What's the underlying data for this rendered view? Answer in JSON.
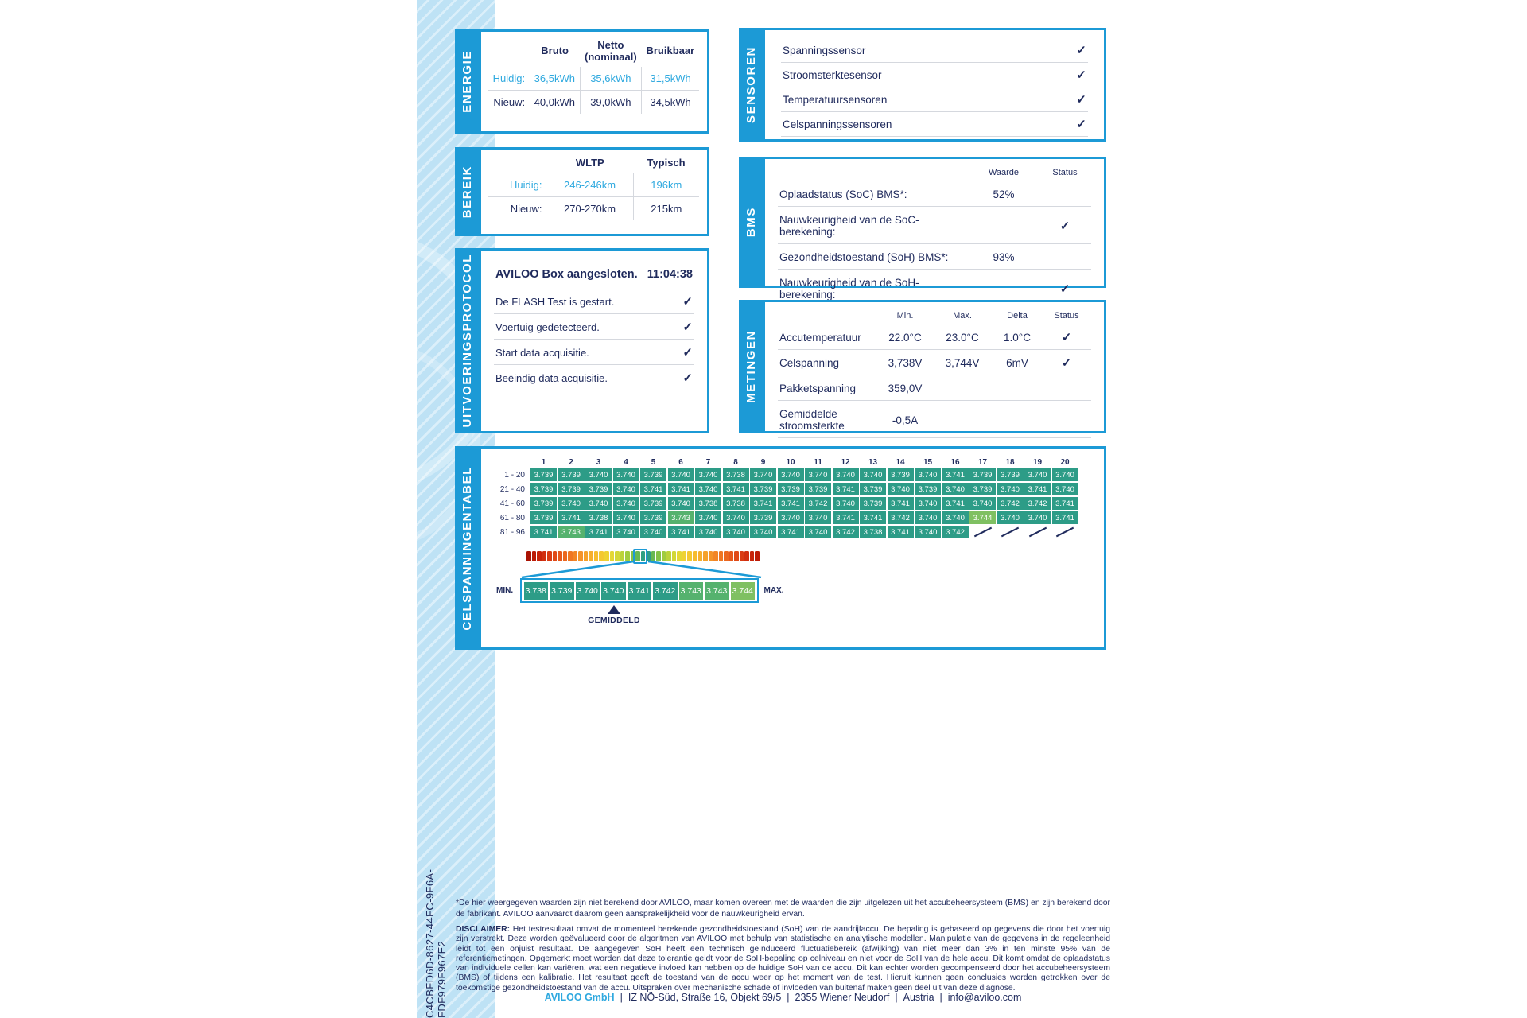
{
  "page": {
    "id_code": "C4CBFD6D-8627-44FC-9F6A-FDF979F967E2"
  },
  "colors": {
    "brand_blue": "#1C9AD6",
    "light_blue_text": "#2FA9DF",
    "navy": "#1F2A5C",
    "band": "#BEE2F5",
    "cell_default": "#2D9C87",
    "cell_3743": "#55B26E",
    "cell_3744": "#7FC062"
  },
  "energie": {
    "label": "ENERGIE",
    "headers": [
      "Bruto",
      "Netto\n(nominaal)",
      "Bruikbaar"
    ],
    "rows": [
      {
        "label": "Huidig:",
        "values": [
          "36,5kWh",
          "35,6kWh",
          "31,5kWh"
        ],
        "highlight": true
      },
      {
        "label": "Nieuw:",
        "values": [
          "40,0kWh",
          "39,0kWh",
          "34,5kWh"
        ],
        "highlight": false
      }
    ]
  },
  "bereik": {
    "label": "BEREIK",
    "headers": [
      "WLTP",
      "Typisch"
    ],
    "rows": [
      {
        "label": "Huidig:",
        "values": [
          "246-246km",
          "196km"
        ],
        "highlight": true
      },
      {
        "label": "Nieuw:",
        "values": [
          "270-270km",
          "215km"
        ],
        "highlight": false
      }
    ]
  },
  "protocol": {
    "label": "UITVOERINGSPROTOCOL",
    "header_text": "AVILOO Box aangesloten.",
    "header_time": "11:04:38",
    "items": [
      {
        "text": "De FLASH Test is gestart.",
        "check": true
      },
      {
        "text": "Voertuig gedetecteerd.",
        "check": true
      },
      {
        "text": "Start data acquisitie.",
        "check": true
      },
      {
        "text": "Beëindig data acquisitie.",
        "check": true
      }
    ]
  },
  "sensoren": {
    "label": "SENSOREN",
    "items": [
      {
        "text": "Spanningssensor",
        "check": true
      },
      {
        "text": "Stroomsterktesensor",
        "check": true
      },
      {
        "text": "Temperatuursensoren",
        "check": true
      },
      {
        "text": "Celspanningssensoren",
        "check": true
      }
    ]
  },
  "bms": {
    "label": "BMS",
    "headers": {
      "waarde": "Waarde",
      "status": "Status"
    },
    "rows": [
      {
        "text": "Oplaadstatus (SoC) BMS*:",
        "waarde": "52%",
        "check": false
      },
      {
        "text": "Nauwkeurigheid van de SoC-berekening:",
        "waarde": "",
        "check": true
      },
      {
        "text": "Gezondheidstoestand (SoH) BMS*:",
        "waarde": "93%",
        "check": false
      },
      {
        "text": "Nauwkeurigheid van de SoH-berekening:",
        "waarde": "",
        "check": true
      }
    ]
  },
  "metingen": {
    "label": "METINGEN",
    "headers": {
      "min": "Min.",
      "max": "Max.",
      "delta": "Delta",
      "status": "Status"
    },
    "rows": [
      {
        "text": "Accutemperatuur",
        "min": "22.0°C",
        "max": "23.0°C",
        "delta": "1.0°C",
        "check": true
      },
      {
        "text": "Celspanning",
        "min": "3,738V",
        "max": "3,744V",
        "delta": "6mV",
        "check": true
      },
      {
        "text": "Pakketspanning",
        "min": "359,0V",
        "max": "",
        "delta": "",
        "check": false
      },
      {
        "text": "Gemiddelde stroomsterkte",
        "min": "-0,5A",
        "max": "",
        "delta": "",
        "check": false
      }
    ]
  },
  "celltable": {
    "label": "CELSPANNINGENTABEL",
    "type": "heatmap-table",
    "col_numbers": [
      "1",
      "2",
      "3",
      "4",
      "5",
      "6",
      "7",
      "8",
      "9",
      "10",
      "11",
      "12",
      "13",
      "14",
      "15",
      "16",
      "17",
      "18",
      "19",
      "20"
    ],
    "row_labels": [
      "1 - 20",
      "21 - 40",
      "41 - 60",
      "61 - 80",
      "81 - 96"
    ],
    "values": [
      [
        "3.739",
        "3.739",
        "3.740",
        "3.740",
        "3.739",
        "3.740",
        "3.740",
        "3.738",
        "3.740",
        "3.740",
        "3.740",
        "3.740",
        "3.740",
        "3.739",
        "3.740",
        "3.741",
        "3.739",
        "3.739",
        "3.740",
        "3.740"
      ],
      [
        "3.739",
        "3.739",
        "3.739",
        "3.740",
        "3.741",
        "3.741",
        "3.740",
        "3.741",
        "3.739",
        "3.739",
        "3.739",
        "3.741",
        "3.739",
        "3.740",
        "3.739",
        "3.740",
        "3.739",
        "3.740",
        "3.741",
        "3.740"
      ],
      [
        "3.739",
        "3.740",
        "3.740",
        "3.740",
        "3.739",
        "3.740",
        "3.738",
        "3.738",
        "3.741",
        "3.741",
        "3.742",
        "3.740",
        "3.739",
        "3.741",
        "3.740",
        "3.741",
        "3.740",
        "3.742",
        "3.742",
        "3.741"
      ],
      [
        "3.739",
        "3.741",
        "3.738",
        "3.740",
        "3.739",
        "3.743",
        "3.740",
        "3.740",
        "3.739",
        "3.740",
        "3.740",
        "3.741",
        "3.741",
        "3.742",
        "3.740",
        "3.740",
        "3.744",
        "3.740",
        "3.740",
        "3.741"
      ],
      [
        "3.741",
        "3.743",
        "3.741",
        "3.740",
        "3.740",
        "3.741",
        "3.740",
        "3.740",
        "3.740",
        "3.741",
        "3.740",
        "3.742",
        "3.738",
        "3.741",
        "3.740",
        "3.742",
        null,
        null,
        null,
        null
      ]
    ],
    "scale_colors": [
      "#A91303",
      "#BC1B06",
      "#C8240A",
      "#D12F0F",
      "#D93B13",
      "#E04917",
      "#E6581B",
      "#EB671F",
      "#EF7622",
      "#F28525",
      "#F49328",
      "#F5A12A",
      "#F6AF2D",
      "#F6BC2F",
      "#F4C831",
      "#EFD233",
      "#E4D735",
      "#D2D737",
      "#BBD33A",
      "#A0CC3F",
      "#83C247",
      "#67B852",
      "#2FA081",
      "#2D9C87",
      "#67B852",
      "#83C247",
      "#A0CC3F",
      "#BBD33A",
      "#D2D737",
      "#E4D735",
      "#EFD233",
      "#F4C831",
      "#F6BC2F",
      "#F6AF2D",
      "#F5A12A",
      "#F49328",
      "#F28525",
      "#EF7622",
      "#EB671F",
      "#E6581B",
      "#E04917",
      "#D93B13",
      "#D12F0F",
      "#C8240A",
      "#BC1B06"
    ],
    "min_label": "MIN.",
    "max_label": "MAX.",
    "avg_label": "GEMIDDELD",
    "zoom_cells": [
      "3.738",
      "3.739",
      "3.740",
      "3.740",
      "3.741",
      "3.742",
      "3.743",
      "3.743",
      "3.744"
    ]
  },
  "footnote": "*De hier weergegeven waarden zijn niet berekend door AVILOO, maar komen overeen met de waarden die zijn uitgelezen uit het accubeheersysteem (BMS) en zijn berekend door de fabrikant. AVILOO aanvaardt daarom geen aansprakelijkheid voor de nauwkeurigheid ervan.",
  "disclaimer": {
    "label": "DISCLAIMER:",
    "text": "Het testresultaat omvat de momenteel berekende gezondheidstoestand (SoH) van de aandrijfaccu. De bepaling is gebaseerd op gegevens die door het voertuig zijn verstrekt. Deze worden geëvalueerd door de algoritmen van AVILOO met behulp van statistische en analytische modellen. Manipulatie van de gegevens in de regeleenheid leidt tot een onjuist resultaat. De aangegeven SoH heeft een technisch geïnduceerd fluctuatiebereik (afwijking) van niet meer dan 3% in ten minste 95% van de referentiemetingen. Opgemerkt moet worden dat deze tolerantie geldt voor de SoH-bepaling op celniveau en niet voor de SoH van de hele accu. Dit komt omdat de oplaadstatus van individuele cellen kan variëren, wat een negatieve invloed kan hebben op de huidige SoH van de accu. Dit kan echter worden gecompenseerd door het accubeheersysteem (BMS) of tijdens een kalibratie. Het resultaat geeft de toestand van de accu weer op het moment van de test. Hieruit kunnen geen conclusies worden getrokken over de toekomstige gezondheidstoestand van de accu. Uitspraken over mechanische schade of invloeden van buitenaf maken geen deel uit van deze diagnose."
  },
  "footer": {
    "company": "AVILOO GmbH",
    "separator": "|",
    "address1": "IZ NÖ-Süd, Straße 16, Objekt 69/5",
    "address2": "2355 Wiener Neudorf",
    "country": "Austria",
    "email": "info@aviloo.com"
  }
}
